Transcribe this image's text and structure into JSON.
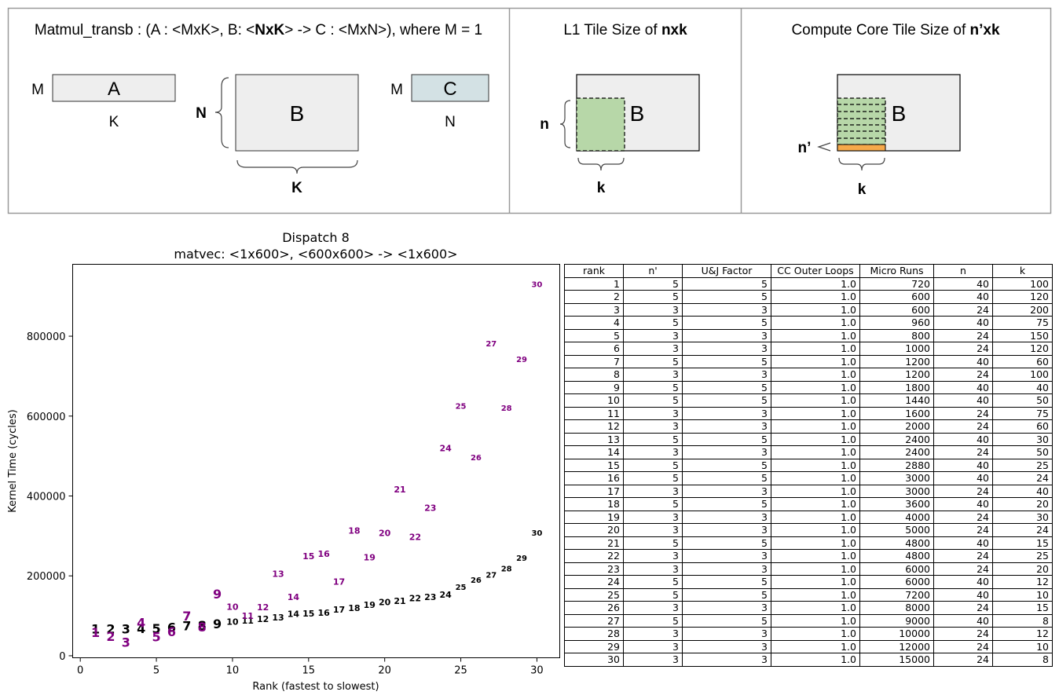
{
  "diagram": {
    "panel1": {
      "title_prefix": "Matmul_transb : (A : <MxK>, B: <",
      "title_bold": "NxK",
      "title_suffix": "> -> C : <MxN>), where M = 1",
      "a_label": "A",
      "a_rows": "M",
      "a_cols": "K",
      "b_label": "B",
      "b_rows": "N",
      "b_cols": "K",
      "c_label": "C",
      "c_rows": "M",
      "c_cols": "N"
    },
    "panel2": {
      "title_prefix": "L1 Tile Size of ",
      "title_bold": "nxk",
      "b_label": "B",
      "tile_rows": "n",
      "tile_cols": "k"
    },
    "panel3": {
      "title_prefix": "Compute Core Tile Size of ",
      "title_bold": "n’xk",
      "b_label": "B",
      "tile_rows": "n’",
      "tile_cols": "k"
    },
    "colors": {
      "matrix_fill": "#eeeeee",
      "c_fill": "#d3e1e4",
      "tile_fill": "#b7d7a8",
      "core_fill": "#f6a94a"
    }
  },
  "chart_data": {
    "type": "scatter",
    "title": "Dispatch 8",
    "subtitle": "matvec: <1x600>, <600x600> -> <1x600>",
    "xlabel": "Rank (fastest to slowest)",
    "ylabel": "Kernel Time (cycles)",
    "xlim": [
      -0.5,
      31.5
    ],
    "ylim": [
      -5000,
      980000
    ],
    "xticks": [
      0,
      5,
      10,
      15,
      20,
      25,
      30
    ],
    "yticks": [
      0,
      200000,
      400000,
      600000,
      800000
    ],
    "grid": false,
    "marker": "rank number text",
    "series": [
      {
        "color": "#000000",
        "x": [
          1,
          2,
          3,
          4,
          5,
          6,
          7,
          8,
          9,
          10,
          11,
          12,
          13,
          14,
          15,
          16,
          17,
          18,
          19,
          20,
          21,
          22,
          23,
          24,
          25,
          26,
          27,
          28,
          29,
          30
        ],
        "y": [
          67000,
          67000,
          67000,
          68000,
          68000,
          71000,
          75000,
          76000,
          80000,
          85000,
          88000,
          92000,
          96000,
          105000,
          106000,
          108000,
          116000,
          120000,
          128000,
          135000,
          137000,
          144000,
          147000,
          153000,
          172000,
          190000,
          203000,
          218000,
          245000,
          308000
        ]
      },
      {
        "color": "#800080",
        "x": [
          1,
          2,
          3,
          4,
          5,
          6,
          7,
          8,
          9,
          10,
          11,
          12,
          13,
          14,
          15,
          16,
          17,
          18,
          19,
          20,
          21,
          22,
          23,
          24,
          25,
          26,
          27,
          28,
          29,
          30
        ],
        "y": [
          58000,
          49000,
          34000,
          83000,
          48000,
          60000,
          100000,
          72000,
          155000,
          123000,
          100000,
          122000,
          205000,
          147000,
          250000,
          255000,
          186000,
          313000,
          247000,
          308000,
          417000,
          298000,
          370000,
          520000,
          625000,
          497000,
          782000,
          620000,
          742000,
          930000
        ]
      }
    ]
  },
  "table": {
    "headers": [
      "rank",
      "n'",
      "U&J Factor",
      "CC Outer Loops",
      "Micro Runs",
      "n",
      "k"
    ],
    "rows": [
      [
        "1",
        "5",
        "5",
        "1.0",
        "720",
        "40",
        "100"
      ],
      [
        "2",
        "5",
        "5",
        "1.0",
        "600",
        "40",
        "120"
      ],
      [
        "3",
        "3",
        "3",
        "1.0",
        "600",
        "24",
        "200"
      ],
      [
        "4",
        "5",
        "5",
        "1.0",
        "960",
        "40",
        "75"
      ],
      [
        "5",
        "3",
        "3",
        "1.0",
        "800",
        "24",
        "150"
      ],
      [
        "6",
        "3",
        "3",
        "1.0",
        "1000",
        "24",
        "120"
      ],
      [
        "7",
        "5",
        "5",
        "1.0",
        "1200",
        "40",
        "60"
      ],
      [
        "8",
        "3",
        "3",
        "1.0",
        "1200",
        "24",
        "100"
      ],
      [
        "9",
        "5",
        "5",
        "1.0",
        "1800",
        "40",
        "40"
      ],
      [
        "10",
        "5",
        "5",
        "1.0",
        "1440",
        "40",
        "50"
      ],
      [
        "11",
        "3",
        "3",
        "1.0",
        "1600",
        "24",
        "75"
      ],
      [
        "12",
        "3",
        "3",
        "1.0",
        "2000",
        "24",
        "60"
      ],
      [
        "13",
        "5",
        "5",
        "1.0",
        "2400",
        "40",
        "30"
      ],
      [
        "14",
        "3",
        "3",
        "1.0",
        "2400",
        "24",
        "50"
      ],
      [
        "15",
        "5",
        "5",
        "1.0",
        "2880",
        "40",
        "25"
      ],
      [
        "16",
        "5",
        "5",
        "1.0",
        "3000",
        "40",
        "24"
      ],
      [
        "17",
        "3",
        "3",
        "1.0",
        "3000",
        "24",
        "40"
      ],
      [
        "18",
        "5",
        "5",
        "1.0",
        "3600",
        "40",
        "20"
      ],
      [
        "19",
        "3",
        "3",
        "1.0",
        "4000",
        "24",
        "30"
      ],
      [
        "20",
        "3",
        "3",
        "1.0",
        "5000",
        "24",
        "24"
      ],
      [
        "21",
        "5",
        "5",
        "1.0",
        "4800",
        "40",
        "15"
      ],
      [
        "22",
        "3",
        "3",
        "1.0",
        "4800",
        "24",
        "25"
      ],
      [
        "23",
        "3",
        "3",
        "1.0",
        "6000",
        "24",
        "20"
      ],
      [
        "24",
        "5",
        "5",
        "1.0",
        "6000",
        "40",
        "12"
      ],
      [
        "25",
        "5",
        "5",
        "1.0",
        "7200",
        "40",
        "10"
      ],
      [
        "26",
        "3",
        "3",
        "1.0",
        "8000",
        "24",
        "15"
      ],
      [
        "27",
        "5",
        "5",
        "1.0",
        "9000",
        "40",
        "8"
      ],
      [
        "28",
        "3",
        "3",
        "1.0",
        "10000",
        "24",
        "12"
      ],
      [
        "29",
        "3",
        "3",
        "1.0",
        "12000",
        "24",
        "10"
      ],
      [
        "30",
        "3",
        "3",
        "1.0",
        "15000",
        "24",
        "8"
      ]
    ]
  }
}
